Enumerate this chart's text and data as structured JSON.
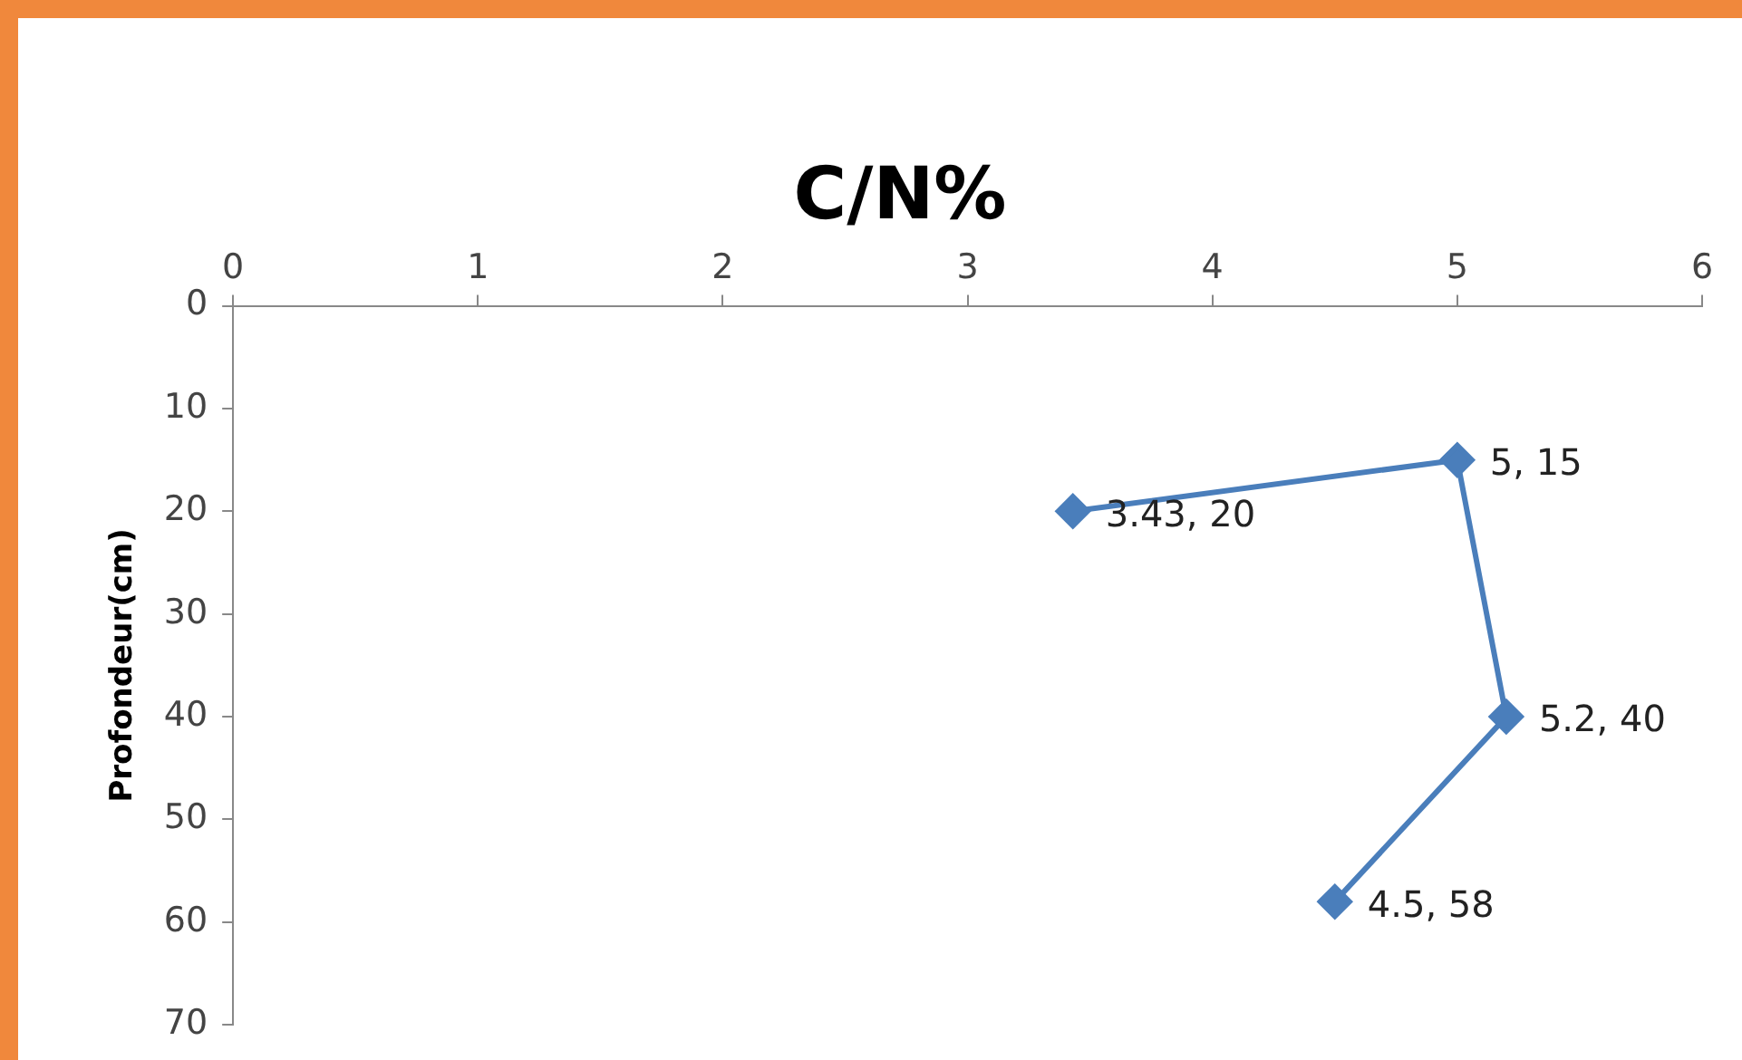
{
  "chart_data": {
    "type": "line",
    "title": "C/N%",
    "ylabel": "Profondeur(cm)",
    "x": [
      3.43,
      5,
      5.2,
      4.5
    ],
    "series": [
      {
        "color": "#4a7ebb",
        "values": [
          20,
          15,
          40,
          58
        ],
        "value_labels": [
          "3.43, 20",
          "5, 15",
          "5.2, 40",
          "4.5, 58"
        ]
      }
    ],
    "xlim": [
      0,
      6
    ],
    "xticks": [
      0,
      1,
      2,
      3,
      4,
      5,
      6
    ],
    "ylim": [
      70,
      0
    ],
    "yticks": [
      0,
      10,
      20,
      30,
      40,
      50,
      60,
      70
    ],
    "grid": false,
    "legend": false,
    "marker": "diamond",
    "line_style": "solid"
  }
}
